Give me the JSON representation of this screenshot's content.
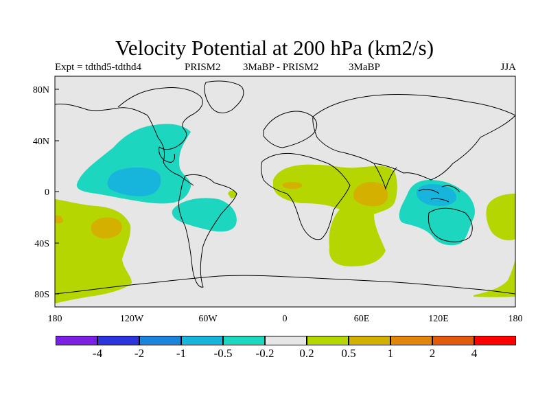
{
  "title": "Velocity Potential at 200 hPa (km2/s)",
  "subtitle": {
    "left": "Expt = tdthd5-tdthd4",
    "mid1": "PRISM2",
    "mid2": "3MaBP - PRISM2",
    "mid3": "3MaBP",
    "right": "JJA"
  },
  "axes": {
    "lat_labels": [
      "80N",
      "40N",
      "0",
      "40S",
      "80S"
    ],
    "lon_labels": [
      "180",
      "120W",
      "60W",
      "0",
      "60E",
      "120E",
      "180"
    ]
  },
  "colorbar": {
    "colors": [
      "#7b1fe0",
      "#2a35dc",
      "#1a85db",
      "#17b5dc",
      "#1cd6c0",
      "#e6e6e6",
      "#b5d600",
      "#d4b000",
      "#e0860a",
      "#e05a0a",
      "#ff0000"
    ],
    "labels": [
      "-4",
      "-2",
      "-1",
      "-0.5",
      "-0.2",
      "0.2",
      "0.5",
      "1",
      "2",
      "4"
    ]
  },
  "fill_colors": {
    "land_bg": "#e6e6e6",
    "neg_weak": "#1cd6c0",
    "neg_mid": "#17b5dc",
    "neg_strong": "#1a85db",
    "pos_weak": "#b5d600",
    "pos_mid": "#d4b000",
    "pos_strong": "#e0860a"
  }
}
